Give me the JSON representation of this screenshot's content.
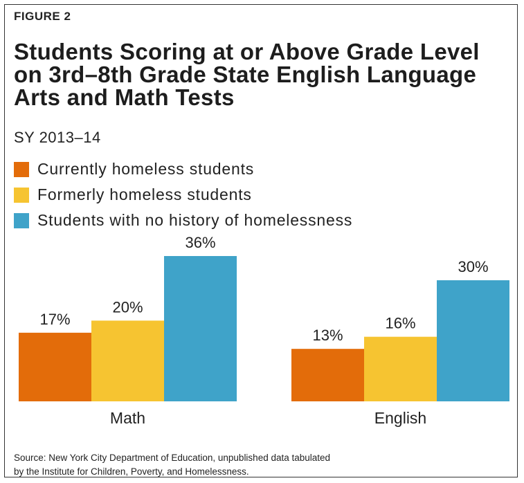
{
  "figure_label": "FIGURE 2",
  "title": "Students Scoring at or Above Grade Level on 3rd–8th Grade State English Language Arts and Math Tests",
  "subtitle": "SY 2013–14",
  "source_lines": [
    "Source: New York City Department of Education, unpublished data tabulated",
    "by the Institute for Children, Poverty, and Homelessness."
  ],
  "chart_data": {
    "type": "bar",
    "categories": [
      "Math",
      "English"
    ],
    "series": [
      {
        "name": "Currently homeless students",
        "color": "#e36c0a",
        "values": [
          17,
          13
        ],
        "labels": [
          "17%",
          "13%"
        ]
      },
      {
        "name": "Formerly homeless students",
        "color": "#f6c431",
        "values": [
          20,
          16
        ],
        "labels": [
          "20%",
          "16%"
        ]
      },
      {
        "name": "Students with no history of homelessness",
        "color": "#3fa3c9",
        "values": [
          36,
          30
        ],
        "labels": [
          "36%",
          "30%"
        ]
      }
    ],
    "ylim": [
      0,
      36
    ],
    "grid": false,
    "legend": "top-left"
  }
}
